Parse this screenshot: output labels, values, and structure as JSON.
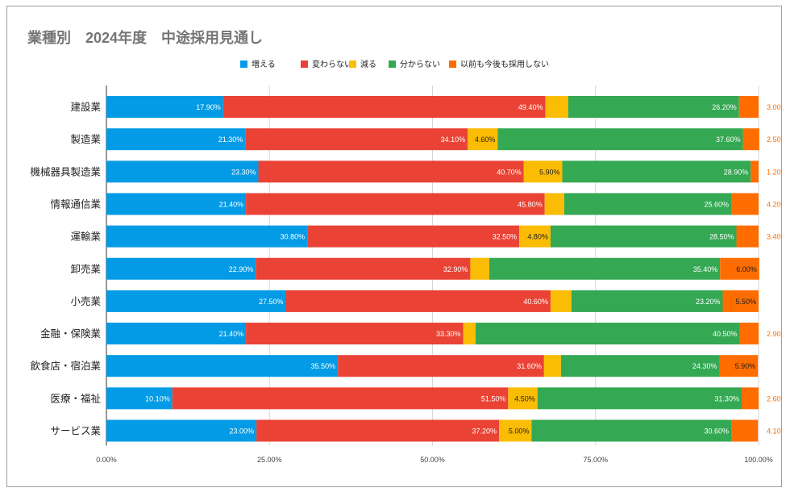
{
  "chart_data": {
    "type": "bar",
    "orientation": "horizontal",
    "stacked": "percent",
    "title": "業種別　2024年度　中途採用見通し",
    "legend_position": "top",
    "categories": [
      "建設業",
      "製造業",
      "機械器具製造業",
      "情報通信業",
      "運輸業",
      "卸売業",
      "小売業",
      "金融・保険業",
      "飲食店・宿泊業",
      "医療・福祉",
      "サービス業"
    ],
    "series": [
      {
        "name": "増える",
        "color": "#039BE5",
        "values": [
          17.9,
          21.3,
          23.3,
          21.4,
          30.8,
          22.9,
          27.5,
          21.4,
          35.5,
          10.1,
          23.0
        ]
      },
      {
        "name": "変わらない",
        "color": "#EA4335",
        "values": [
          49.4,
          34.1,
          40.7,
          45.8,
          32.5,
          32.9,
          40.6,
          33.3,
          31.6,
          51.5,
          37.2
        ]
      },
      {
        "name": "減る",
        "color": "#FBBC04",
        "values": [
          3.5,
          4.6,
          5.9,
          3.0,
          4.8,
          2.9,
          3.2,
          1.9,
          2.6,
          4.5,
          5.0
        ]
      },
      {
        "name": "分からない",
        "color": "#34A853",
        "values": [
          26.2,
          37.6,
          28.9,
          25.6,
          28.5,
          35.4,
          23.2,
          40.5,
          24.3,
          31.3,
          30.6
        ]
      },
      {
        "name": "以前も今後も採用しない",
        "color": "#FF6D01",
        "values": [
          3.0,
          2.5,
          1.2,
          4.2,
          3.4,
          6.0,
          5.5,
          2.9,
          5.9,
          2.6,
          4.1
        ]
      }
    ],
    "xlim": [
      0,
      100
    ],
    "x_ticks": [
      "0.00%",
      "25.00%",
      "50.00%",
      "75.00%",
      "100.00%"
    ],
    "grid": true,
    "value_format": "0.00%"
  }
}
